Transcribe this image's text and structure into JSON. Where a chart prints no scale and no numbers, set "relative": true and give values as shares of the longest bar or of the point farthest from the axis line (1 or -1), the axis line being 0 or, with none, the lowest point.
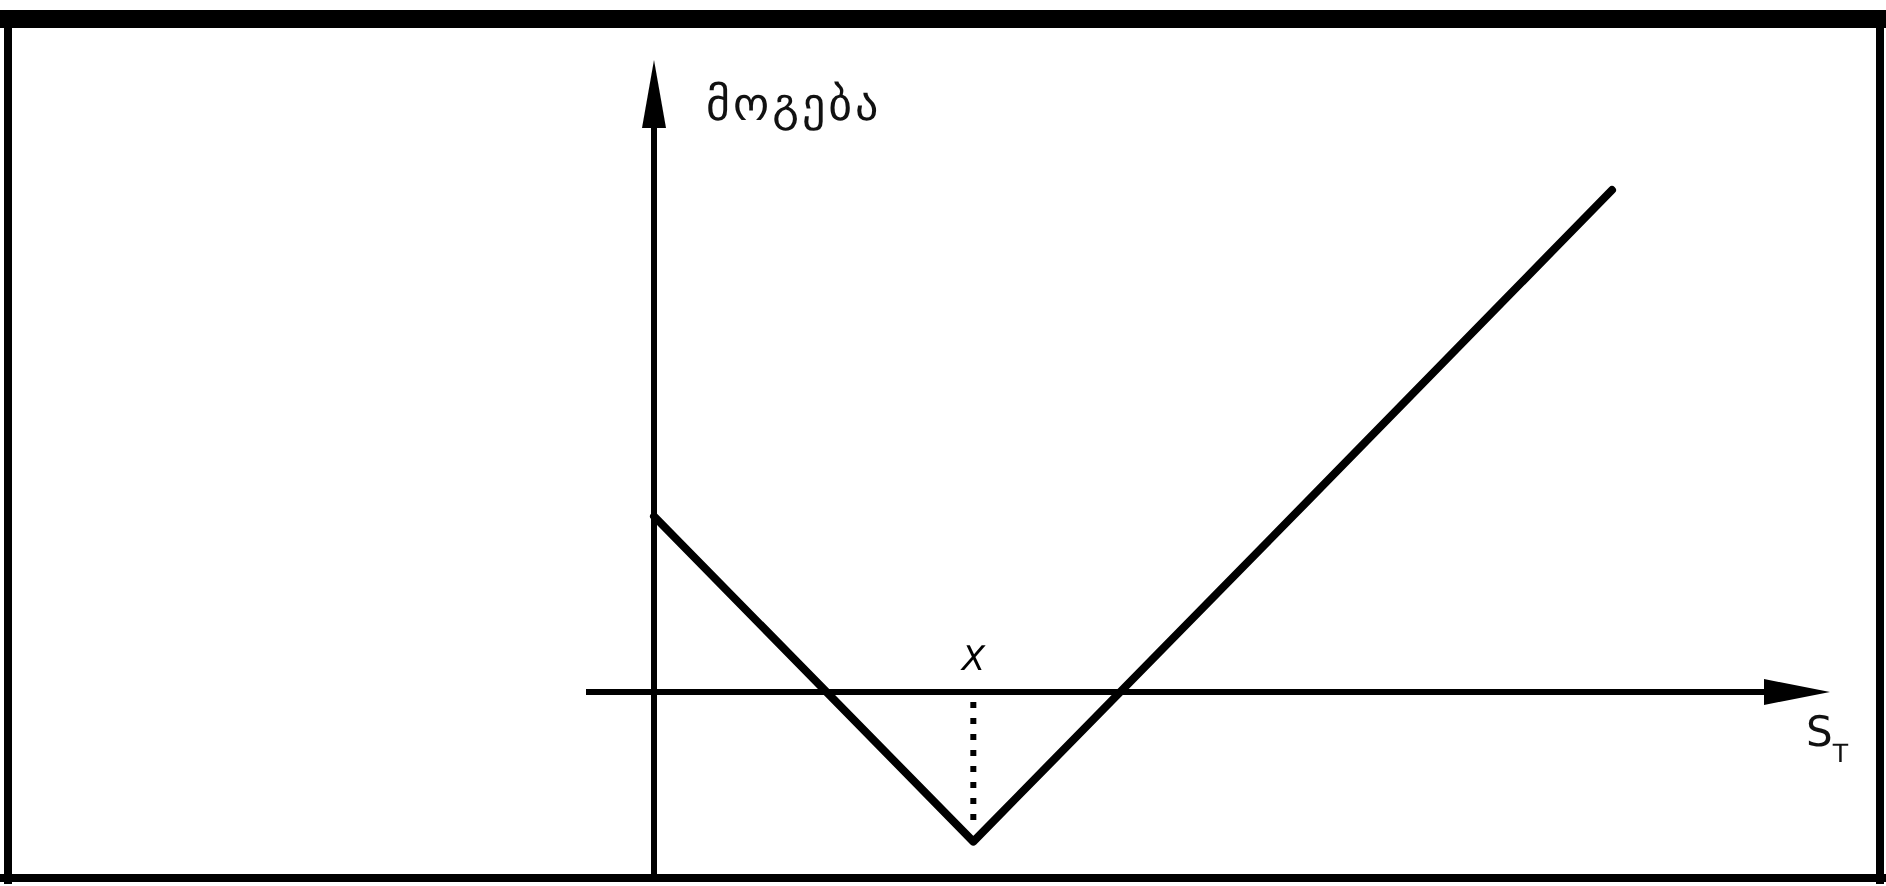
{
  "chart_data": {
    "type": "line",
    "relative": true,
    "ylabel": "მოგება",
    "xlabel": "S$_{T}$",
    "categories": [
      null,
      null,
      null,
      null
    ],
    "values": [
      0.35,
      -0.298,
      0.35,
      1
    ],
    "color": "#000000",
    "annotations": [
      {
        "text": "X",
        "y": -0.298
      }
    ]
  }
}
